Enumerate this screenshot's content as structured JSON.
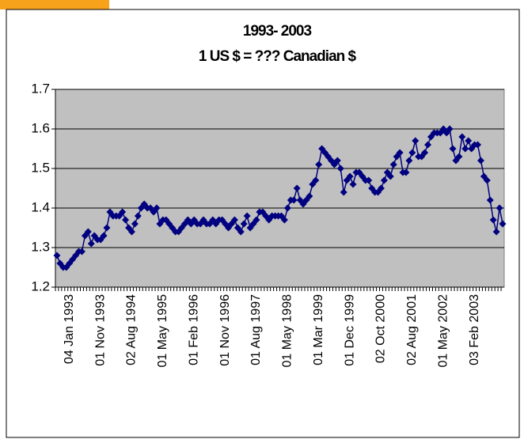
{
  "chart_data": {
    "type": "line",
    "title": "1993- 2003",
    "subtitle": "1 US $ =  ??? Canadian $",
    "categories": [
      null,
      null,
      null,
      null,
      "04 Jan 1993",
      null,
      null,
      null,
      null,
      null,
      null,
      null,
      null,
      null,
      "01 Nov 1993",
      null,
      null,
      null,
      null,
      null,
      null,
      null,
      null,
      null,
      "02 Aug 1994",
      null,
      null,
      null,
      null,
      null,
      null,
      null,
      null,
      null,
      "01 May 1995",
      null,
      null,
      null,
      null,
      null,
      null,
      null,
      null,
      null,
      "01 Feb 1996",
      null,
      null,
      null,
      null,
      null,
      null,
      null,
      null,
      null,
      "01 Nov 1996",
      null,
      null,
      null,
      null,
      null,
      null,
      null,
      null,
      null,
      "01 Aug 1997",
      null,
      null,
      null,
      null,
      null,
      null,
      null,
      null,
      null,
      "01 May 1998",
      null,
      null,
      null,
      null,
      null,
      null,
      null,
      null,
      null,
      "01 Mar 1999",
      null,
      null,
      null,
      null,
      null,
      null,
      null,
      null,
      null,
      "01 Dec 1999",
      null,
      null,
      null,
      null,
      null,
      null,
      null,
      null,
      null,
      "02 Oct 2000",
      null,
      null,
      null,
      null,
      null,
      null,
      null,
      null,
      null,
      "02 Aug 2001",
      null,
      null,
      null,
      null,
      null,
      null,
      null,
      null,
      null,
      "01 May 2002",
      null,
      null,
      null,
      null,
      null,
      null,
      null,
      null,
      null,
      "03 Feb 2003",
      null,
      null,
      null,
      null,
      null,
      null,
      null,
      null,
      null
    ],
    "values": [
      1.28,
      1.26,
      1.25,
      1.25,
      1.26,
      1.27,
      1.28,
      1.29,
      1.29,
      1.33,
      1.34,
      1.31,
      1.33,
      1.32,
      1.32,
      1.33,
      1.35,
      1.39,
      1.38,
      1.38,
      1.38,
      1.39,
      1.37,
      1.35,
      1.34,
      1.36,
      1.38,
      1.4,
      1.41,
      1.4,
      1.4,
      1.39,
      1.4,
      1.36,
      1.37,
      1.37,
      1.36,
      1.35,
      1.34,
      1.34,
      1.35,
      1.36,
      1.37,
      1.36,
      1.37,
      1.36,
      1.36,
      1.37,
      1.36,
      1.36,
      1.37,
      1.36,
      1.37,
      1.37,
      1.36,
      1.35,
      1.36,
      1.37,
      1.35,
      1.34,
      1.36,
      1.38,
      1.35,
      1.36,
      1.37,
      1.39,
      1.39,
      1.38,
      1.37,
      1.38,
      1.38,
      1.38,
      1.38,
      1.37,
      1.4,
      1.42,
      1.42,
      1.45,
      1.42,
      1.41,
      1.42,
      1.43,
      1.46,
      1.47,
      1.51,
      1.55,
      1.54,
      1.53,
      1.52,
      1.51,
      1.52,
      1.5,
      1.44,
      1.47,
      1.48,
      1.46,
      1.49,
      1.49,
      1.48,
      1.47,
      1.47,
      1.45,
      1.44,
      1.44,
      1.45,
      1.47,
      1.49,
      1.48,
      1.51,
      1.53,
      1.54,
      1.49,
      1.49,
      1.52,
      1.54,
      1.57,
      1.53,
      1.53,
      1.54,
      1.56,
      1.58,
      1.59,
      1.59,
      1.59,
      1.6,
      1.59,
      1.6,
      1.55,
      1.52,
      1.53,
      1.58,
      1.55,
      1.57,
      1.55,
      1.56,
      1.56,
      1.52,
      1.48,
      1.47,
      1.42,
      1.37,
      1.34,
      1.4,
      1.36
    ],
    "color": "#000080",
    "ylim": [
      1.2,
      1.7
    ],
    "yticks": [
      1.2,
      1.3,
      1.4,
      1.5,
      1.6,
      1.7
    ],
    "grid": true
  }
}
